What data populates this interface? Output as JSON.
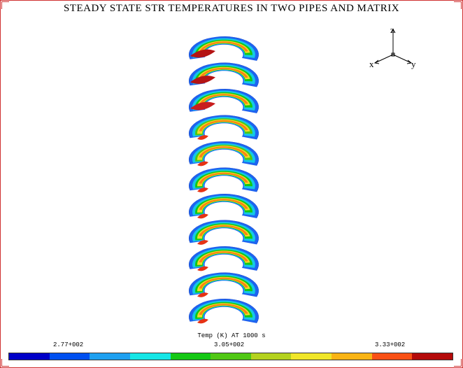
{
  "title": "STEADY STATE STR TEMPERATURES IN TWO PIPES AND MATRIX",
  "axes": {
    "z": "z",
    "x": "x",
    "y": "y"
  },
  "legend": {
    "title": "Temp (K) AT 1000 s",
    "labels": [
      "2.77+002",
      "3.05+002",
      "3.33+002"
    ],
    "colors": [
      "#0000c8",
      "#0050f0",
      "#1ea0f0",
      "#14e6e6",
      "#14c814",
      "#50c814",
      "#b4d21e",
      "#f0e628",
      "#fab414",
      "#fa5014",
      "#b40a0a"
    ]
  },
  "slices": [
    {
      "palette": [
        "#1e64f0",
        "#14c8e6",
        "#14c814",
        "#f0dc28",
        "#fa8214",
        "#b41414"
      ]
    },
    {
      "palette": [
        "#1e64f0",
        "#14c8e6",
        "#14c814",
        "#f0dc28",
        "#fa8214",
        "#b41414"
      ]
    },
    {
      "palette": [
        "#1e64f0",
        "#14c8e6",
        "#14c814",
        "#f0dc28",
        "#fa8214",
        "#c81e1e"
      ]
    },
    {
      "palette": [
        "#1e64f0",
        "#14c8e6",
        "#50c814",
        "#f0dc28",
        "#fa8214",
        "#e63214"
      ]
    },
    {
      "palette": [
        "#1e64f0",
        "#14c8e6",
        "#50c814",
        "#f0dc28",
        "#fa8214",
        "#e63214"
      ]
    },
    {
      "palette": [
        "#1e64f0",
        "#14c8e6",
        "#14c814",
        "#f0dc28",
        "#fa8214",
        "#e63214"
      ]
    },
    {
      "palette": [
        "#1e64f0",
        "#14c8e6",
        "#14c814",
        "#f0dc28",
        "#fa8214",
        "#e63214"
      ]
    },
    {
      "palette": [
        "#1e64f0",
        "#14c8e6",
        "#14c814",
        "#f0dc28",
        "#fa8214",
        "#e63214"
      ]
    },
    {
      "palette": [
        "#1e64f0",
        "#14c8e6",
        "#14c814",
        "#f0dc28",
        "#fa8214",
        "#e63214"
      ]
    },
    {
      "palette": [
        "#1e64f0",
        "#14c8e6",
        "#14c814",
        "#f0dc28",
        "#fa8214",
        "#e63214"
      ]
    },
    {
      "palette": [
        "#1e64f0",
        "#14c8e6",
        "#14c814",
        "#f0dc28",
        "#fa8214",
        "#e63214"
      ]
    }
  ]
}
